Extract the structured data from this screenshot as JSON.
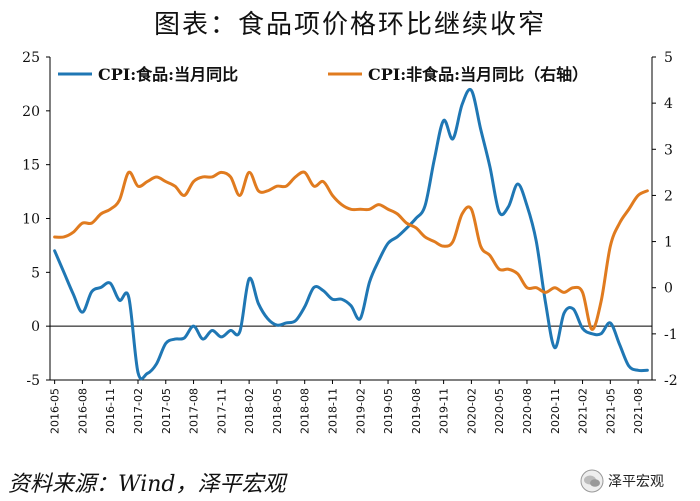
{
  "title": "图表：食品项价格环比继续收窄",
  "source": "资料来源：Wind，泽平宏观",
  "watermark": "泽平宏观",
  "colors": {
    "food": "#1f77b4",
    "nonfood": "#e07b1f",
    "axis": "#000000"
  },
  "chart_data": {
    "type": "line",
    "x": [
      "2016-05",
      "2016-06",
      "2016-07",
      "2016-08",
      "2016-09",
      "2016-10",
      "2016-11",
      "2016-12",
      "2017-01",
      "2017-02",
      "2017-03",
      "2017-04",
      "2017-05",
      "2017-06",
      "2017-07",
      "2017-08",
      "2017-09",
      "2017-10",
      "2017-11",
      "2017-12",
      "2018-01",
      "2018-02",
      "2018-03",
      "2018-04",
      "2018-05",
      "2018-06",
      "2018-07",
      "2018-08",
      "2018-09",
      "2018-10",
      "2018-11",
      "2018-12",
      "2019-01",
      "2019-02",
      "2019-03",
      "2019-04",
      "2019-05",
      "2019-06",
      "2019-07",
      "2019-08",
      "2019-09",
      "2019-10",
      "2019-11",
      "2019-12",
      "2020-01",
      "2020-02",
      "2020-03",
      "2020-04",
      "2020-05",
      "2020-06",
      "2020-07",
      "2020-08",
      "2020-09",
      "2020-10",
      "2020-11",
      "2020-12",
      "2021-01",
      "2021-02",
      "2021-03",
      "2021-04",
      "2021-05",
      "2021-06",
      "2021-07",
      "2021-08",
      "2021-09"
    ],
    "xticks": [
      "2016-05",
      "2016-08",
      "2016-11",
      "2017-02",
      "2017-05",
      "2017-08",
      "2017-11",
      "2018-02",
      "2018-05",
      "2018-08",
      "2018-11",
      "2019-02",
      "2019-05",
      "2019-08",
      "2019-11",
      "2020-02",
      "2020-05",
      "2020-08",
      "2020-11",
      "2021-02",
      "2021-05",
      "2021-08"
    ],
    "y_left": {
      "range": [
        -5,
        25
      ],
      "ticks": [
        -5,
        0,
        5,
        10,
        15,
        20,
        25
      ]
    },
    "y_right": {
      "range": [
        -2,
        5
      ],
      "ticks": [
        -2,
        -1,
        0,
        1,
        2,
        3,
        4,
        5
      ]
    },
    "legend_position": "top",
    "grid": false,
    "series": [
      {
        "name": "CPI:食品:当月同比",
        "axis": "left",
        "color": "#1f77b4",
        "values": [
          7.0,
          5.0,
          3.0,
          1.3,
          3.2,
          3.6,
          4.0,
          2.4,
          2.7,
          -4.3,
          -4.4,
          -3.5,
          -1.6,
          -1.2,
          -1.1,
          0.0,
          -1.2,
          -0.4,
          -1.0,
          -0.4,
          -0.5,
          4.4,
          2.1,
          0.7,
          0.1,
          0.3,
          0.5,
          1.8,
          3.6,
          3.3,
          2.5,
          2.5,
          1.9,
          0.7,
          4.1,
          6.1,
          7.7,
          8.3,
          9.1,
          10.0,
          11.2,
          15.5,
          19.1,
          17.4,
          20.6,
          21.9,
          18.3,
          14.8,
          10.6,
          11.1,
          13.2,
          11.2,
          7.9,
          2.2,
          -2.0,
          1.2,
          1.6,
          -0.2,
          -0.7,
          -0.7,
          0.3,
          -1.7,
          -3.7,
          -4.1,
          -4.1
        ]
      },
      {
        "name": "CPI:非食品:当月同比（右轴）",
        "axis": "right",
        "color": "#e07b1f",
        "values": [
          1.1,
          1.1,
          1.2,
          1.4,
          1.4,
          1.6,
          1.7,
          1.9,
          2.5,
          2.2,
          2.3,
          2.4,
          2.3,
          2.2,
          2.0,
          2.3,
          2.4,
          2.4,
          2.5,
          2.4,
          2.0,
          2.5,
          2.1,
          2.1,
          2.2,
          2.2,
          2.4,
          2.5,
          2.2,
          2.3,
          2.0,
          1.8,
          1.7,
          1.7,
          1.7,
          1.8,
          1.7,
          1.6,
          1.4,
          1.3,
          1.1,
          1.0,
          0.9,
          1.0,
          1.6,
          1.7,
          0.9,
          0.7,
          0.4,
          0.4,
          0.3,
          0.0,
          0.0,
          -0.1,
          0.0,
          -0.1,
          0.0,
          -0.1,
          -0.9,
          -0.3,
          0.9,
          1.4,
          1.7,
          2.0,
          2.1
        ]
      }
    ]
  }
}
